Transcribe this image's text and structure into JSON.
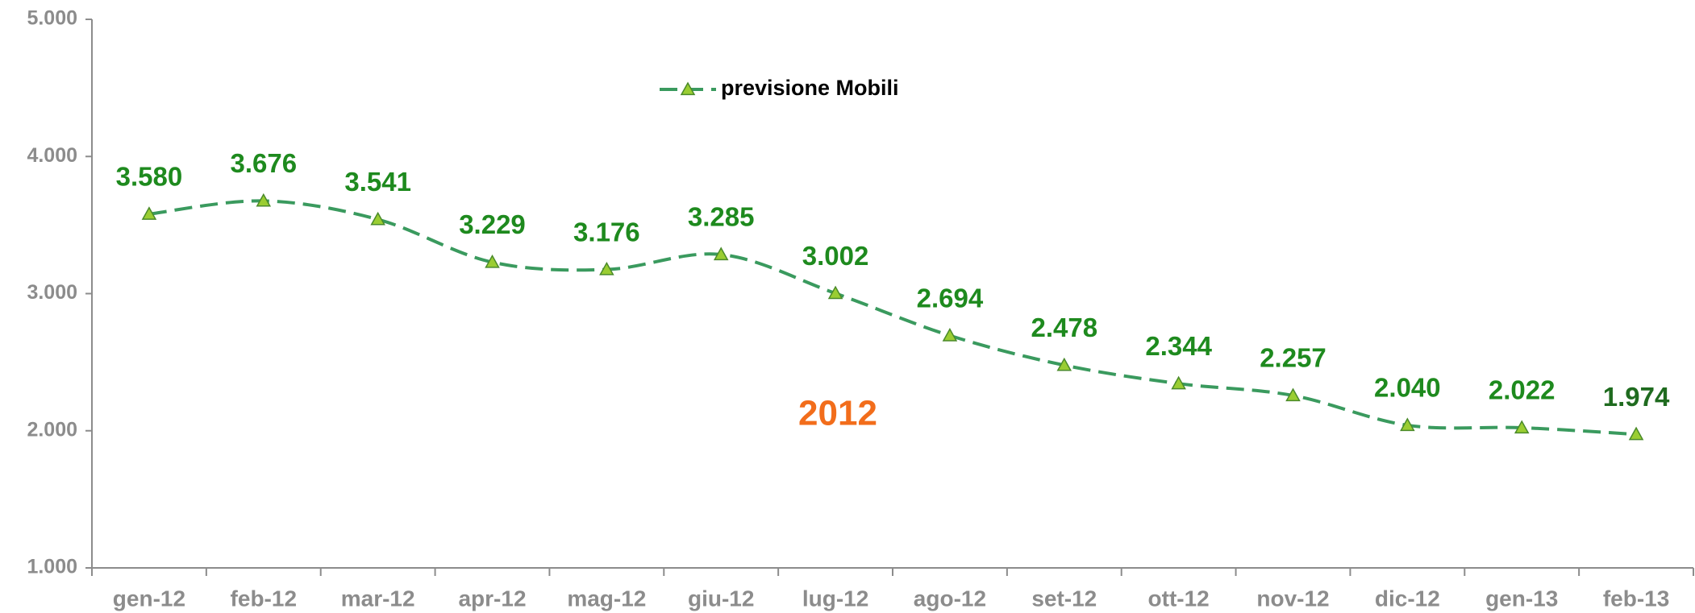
{
  "chart_data": {
    "type": "line",
    "categories": [
      "gen-12",
      "feb-12",
      "mar-12",
      "apr-12",
      "mag-12",
      "giu-12",
      "lug-12",
      "ago-12",
      "set-12",
      "ott-12",
      "nov-12",
      "dic-12",
      "gen-13",
      "feb-13"
    ],
    "series": [
      {
        "name": "previsione Mobili",
        "color": "#3a9a5e",
        "marker_color": "#9acd32",
        "values": [
          3580,
          3676,
          3541,
          3229,
          3176,
          3285,
          3002,
          2694,
          2478,
          2344,
          2257,
          2040,
          2022,
          1974
        ],
        "value_labels": [
          "3.580",
          "3.676",
          "3.541",
          "3.229",
          "3.176",
          "3.285",
          "3.002",
          "2.694",
          "2.478",
          "2.344",
          "2.257",
          "2.040",
          "2.022",
          "1.974"
        ]
      }
    ],
    "ylim": [
      1000,
      5000
    ],
    "yticks": [
      {
        "value": 1000,
        "label": "1.000"
      },
      {
        "value": 2000,
        "label": "2.000"
      },
      {
        "value": 3000,
        "label": "3.000"
      },
      {
        "value": 4000,
        "label": "4.000"
      },
      {
        "value": 5000,
        "label": "5.000"
      }
    ],
    "annotation": "2012",
    "legend": "top-center",
    "grid": false
  }
}
